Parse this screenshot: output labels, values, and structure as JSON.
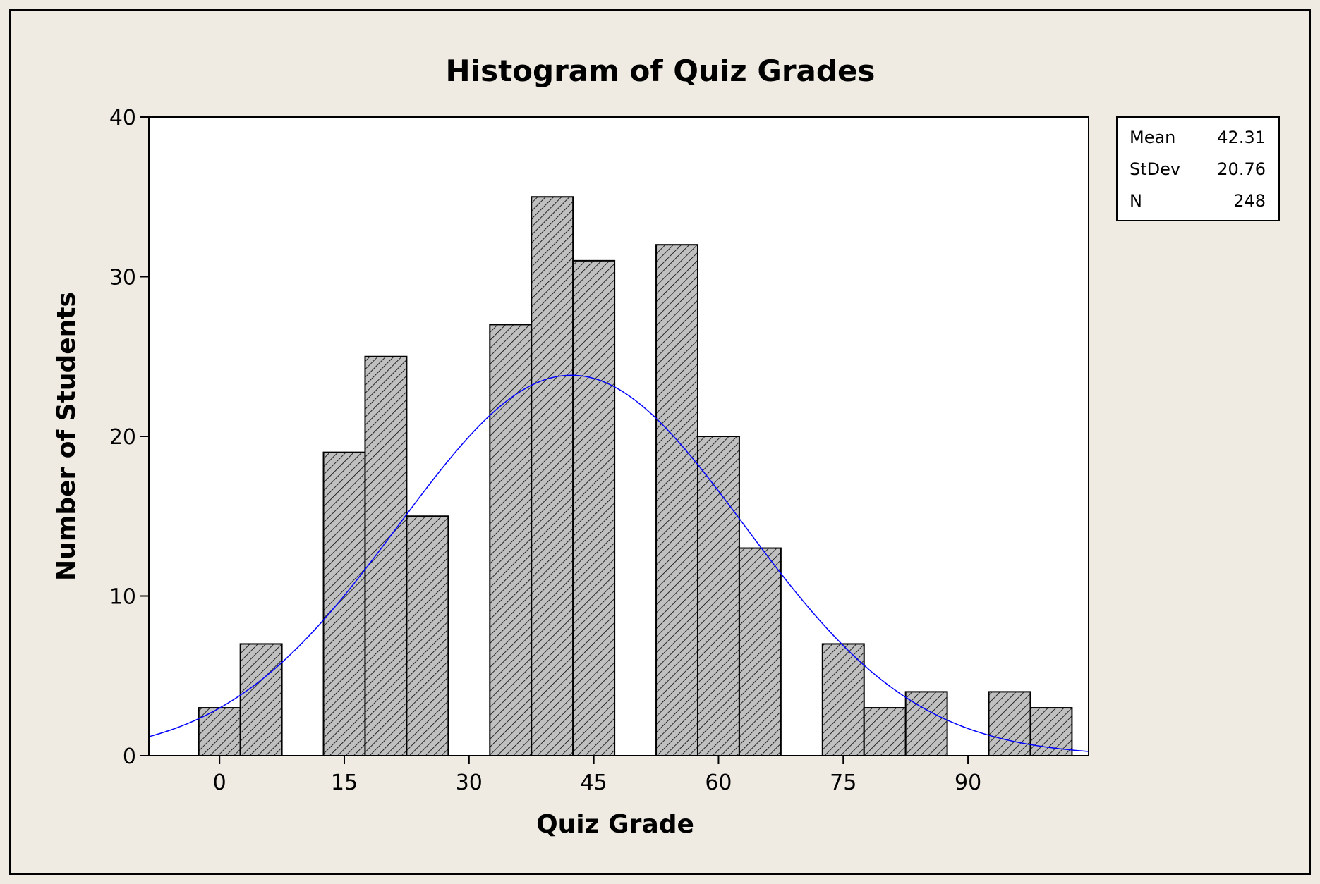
{
  "chart_data": {
    "type": "bar",
    "title": "Histogram of Quiz Grades",
    "xlabel": "Quiz Grade",
    "ylabel": "Number of Students",
    "xlim": [
      -8.5,
      104.5
    ],
    "ylim": [
      0,
      40
    ],
    "x_ticks": [
      "0",
      "15",
      "30",
      "45",
      "60",
      "75",
      "90"
    ],
    "x_tick_values": [
      0,
      15,
      30,
      45,
      60,
      75,
      90
    ],
    "y_ticks": [
      "0",
      "10",
      "20",
      "30",
      "40"
    ],
    "y_tick_values": [
      0,
      10,
      20,
      30,
      40
    ],
    "bin_width": 5,
    "bins": [
      {
        "center": 0,
        "value": 3
      },
      {
        "center": 5,
        "value": 7
      },
      {
        "center": 10,
        "value": 0
      },
      {
        "center": 15,
        "value": 19
      },
      {
        "center": 20,
        "value": 25
      },
      {
        "center": 25,
        "value": 15
      },
      {
        "center": 30,
        "value": 0
      },
      {
        "center": 35,
        "value": 27
      },
      {
        "center": 40,
        "value": 35
      },
      {
        "center": 45,
        "value": 31
      },
      {
        "center": 50,
        "value": 0
      },
      {
        "center": 55,
        "value": 32
      },
      {
        "center": 60,
        "value": 20
      },
      {
        "center": 65,
        "value": 13
      },
      {
        "center": 70,
        "value": 0
      },
      {
        "center": 75,
        "value": 7
      },
      {
        "center": 80,
        "value": 3
      },
      {
        "center": 85,
        "value": 4
      },
      {
        "center": 90,
        "value": 0
      },
      {
        "center": 95,
        "value": 4
      },
      {
        "center": 100,
        "value": 3
      }
    ],
    "normal_fit": {
      "mean": 42.31,
      "stdev": 20.76,
      "n": 248
    },
    "stats_box": [
      {
        "label": "Mean",
        "value": "42.31"
      },
      {
        "label": "StDev",
        "value": "20.76"
      },
      {
        "label": "N",
        "value": "248"
      }
    ],
    "colors": {
      "frame_background": "#efebe2",
      "plot_background": "#ffffff",
      "bar_fill": "#c0c0c0",
      "bar_hatch": "#000000",
      "fit_curve": "#0000ff"
    },
    "grid": false,
    "legend_position": "right"
  }
}
